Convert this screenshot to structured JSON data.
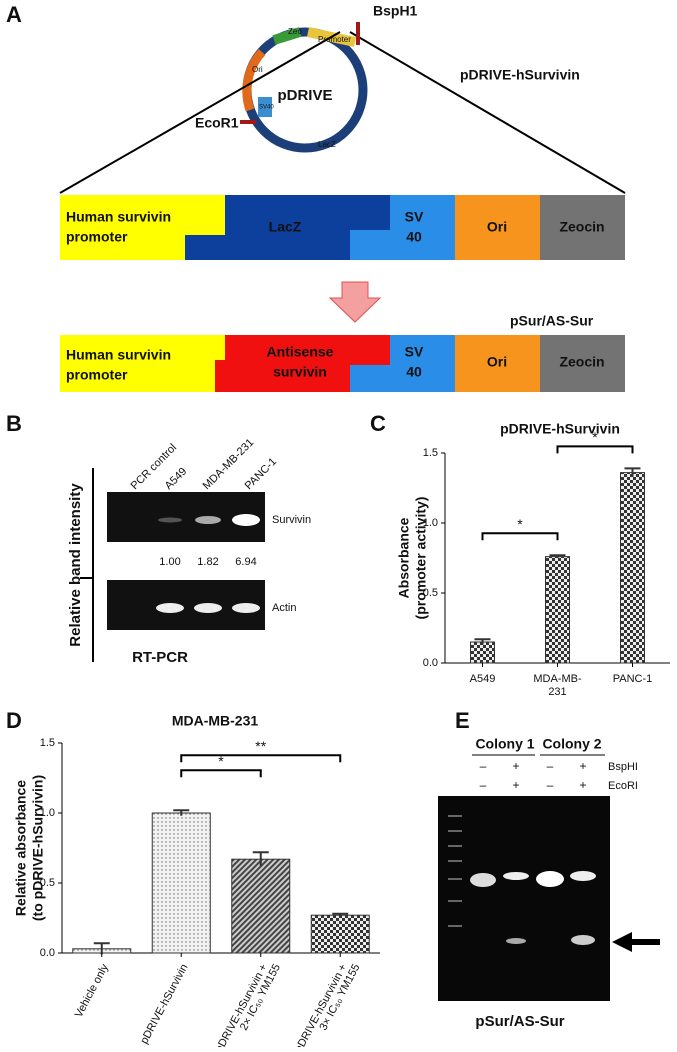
{
  "panel_labels": [
    "A",
    "B",
    "C",
    "D",
    "E"
  ],
  "plasmid": {
    "name": "pDRIVE",
    "construct": "pDRIVE-hSurvivin",
    "sites": [
      "BspH1",
      "EcoR1"
    ],
    "features": [
      "Zeo",
      "Promoter",
      "Ori",
      "SV40",
      "LacZ"
    ]
  },
  "construct_1": {
    "segments": [
      [
        "Human survivin",
        "promoter"
      ],
      [
        "LacZ"
      ],
      [
        "SV",
        "40"
      ],
      [
        "Ori"
      ],
      [
        "Zeocin"
      ]
    ]
  },
  "construct_2": {
    "title": "pSur/AS-Sur",
    "segments": [
      [
        "Human survivin",
        "promoter"
      ],
      [
        "Antisense",
        "survivin"
      ],
      [
        "SV",
        "40"
      ],
      [
        "Ori"
      ],
      [
        "Zeocin"
      ]
    ]
  },
  "rt_pcr": {
    "title": "RT-PCR",
    "axis_label": "Relative band intensity",
    "lanes": [
      "PCR control",
      "A549",
      "MDA-MB-231",
      "PANC-1"
    ],
    "bands": [
      "Survivin",
      "Actin"
    ],
    "intensities": [
      "1.00",
      "1.82",
      "6.94"
    ]
  },
  "chart_data": [
    {
      "type": "bar",
      "title": "pDRIVE-hSurvivin",
      "ylabel": [
        "Absorbance",
        "(promoter activity)"
      ],
      "categories": [
        [
          "A549"
        ],
        [
          "MDA-MB-",
          "231"
        ],
        [
          "PANC-1"
        ]
      ],
      "values": [
        0.15,
        0.76,
        1.36
      ],
      "errors": [
        0.02,
        0.01,
        0.03
      ],
      "color": "#333333",
      "ylim": [
        0,
        1.5
      ],
      "yticks": [
        {
          "value": 0,
          "label": "0.0"
        },
        0.5,
        {
          "value": 1,
          "label": "1.0"
        },
        1.5
      ],
      "annotations": [
        "*",
        "*"
      ]
    },
    {
      "type": "bar",
      "title": "MDA-MB-231",
      "ylabel": [
        "Relative absorbance",
        "(to pDRIVE-hSurvivin)"
      ],
      "categories": [
        [
          "Vehicle only"
        ],
        [
          "pDRIVE-hSurvivin"
        ],
        [
          "pDRIVE-hSurvivin +",
          "2× IC₅₀ YM155"
        ],
        [
          "pDRIVE-hSurvivin +",
          "3× IC₅₀ YM155"
        ]
      ],
      "values": [
        0.03,
        1.0,
        0.67,
        0.27
      ],
      "errors": [
        0.04,
        0.02,
        0.05,
        0.01
      ],
      "color": "#333333",
      "ylim": [
        0,
        1.5
      ],
      "yticks": [
        {
          "value": 0,
          "label": "0.0"
        },
        0.5,
        {
          "value": 1,
          "label": "1.0"
        },
        1.5
      ],
      "annotations": [
        "*",
        "**"
      ]
    }
  ],
  "gel": {
    "title": "pSur/AS-Sur",
    "colonies": [
      "Colony 1",
      "Colony 2"
    ],
    "enzymes": [
      {
        "name": "BspHI",
        "lanes": [
          "–",
          "+",
          "–",
          "+"
        ]
      },
      {
        "name": "EcoRI",
        "lanes": [
          "–",
          "+",
          "–",
          "+"
        ]
      }
    ]
  }
}
